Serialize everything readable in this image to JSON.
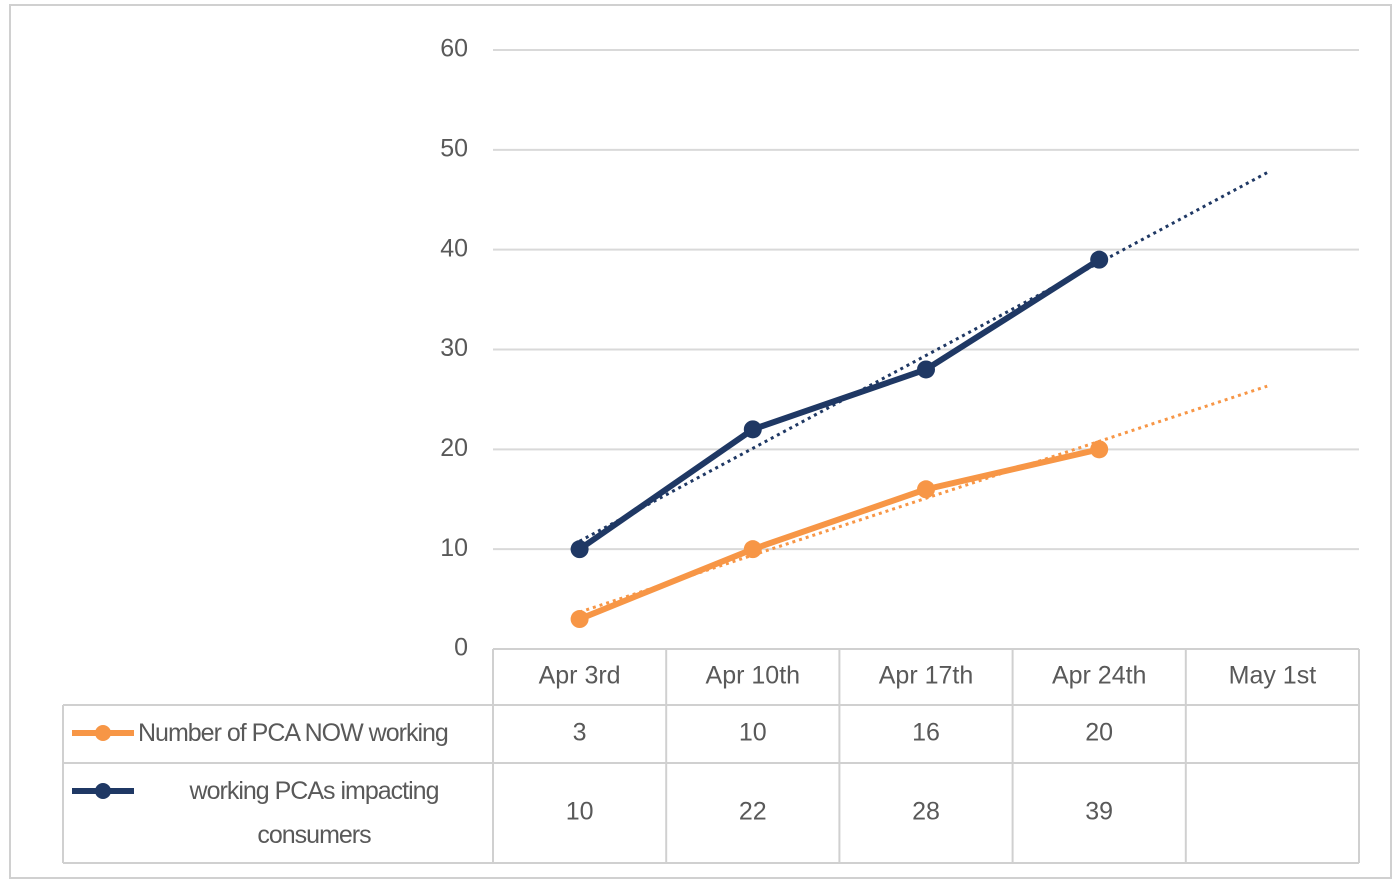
{
  "chart_data": {
    "type": "line",
    "categories": [
      "Apr 3rd",
      "Apr 10th",
      "Apr 17th",
      "Apr 24th",
      "May 1st"
    ],
    "series": [
      {
        "name": "Number of PCA NOW working",
        "color": "#f79646",
        "values": [
          3,
          10,
          16,
          20,
          null
        ],
        "trendline": "linear"
      },
      {
        "name": "working PCAs impacting consumers",
        "color": "#1f3864",
        "values": [
          10,
          22,
          28,
          39,
          null
        ],
        "trendline": "linear"
      }
    ],
    "ylim": [
      0,
      60
    ],
    "yticks": [
      0,
      10,
      20,
      30,
      40,
      50,
      60
    ],
    "grid": true,
    "data_table": true
  }
}
